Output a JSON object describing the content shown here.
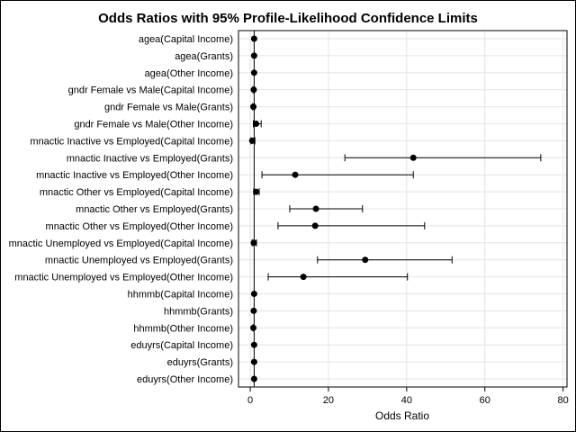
{
  "chart_data": {
    "type": "scatter",
    "subtype": "forest-plot",
    "title": "Odds Ratios with 95% Profile-Likelihood Confidence Limits",
    "xlabel": "Odds Ratio",
    "ylabel": "",
    "xlim": [
      -3,
      81
    ],
    "xticks": [
      0,
      20,
      40,
      60,
      80
    ],
    "grid": true,
    "reference_line": 1,
    "categories": [
      "agea(Capital Income)",
      "agea(Grants)",
      "agea(Other Income)",
      "gndr Female vs Male(Capital Income)",
      "gndr Female vs Male(Grants)",
      "gndr Female vs Male(Other Income)",
      "mnactic Inactive vs Employed(Capital Income)",
      "mnactic Inactive vs Employed(Grants)",
      "mnactic Inactive vs Employed(Other Income)",
      "mnactic Other vs Employed(Capital Income)",
      "mnactic Other vs Employed(Grants)",
      "mnactic Other vs Employed(Other Income)",
      "mnactic Unemployed vs Employed(Capital Income)",
      "mnactic Unemployed vs Employed(Grants)",
      "mnactic Unemployed vs Employed(Other Income)",
      "hhmmb(Capital Income)",
      "hhmmb(Grants)",
      "hhmmb(Other Income)",
      "eduyrs(Capital Income)",
      "eduyrs(Grants)",
      "eduyrs(Other Income)"
    ],
    "estimates": [
      1.0,
      1.0,
      1.0,
      0.9,
      0.8,
      1.5,
      0.5,
      41.7,
      11.5,
      1.5,
      16.8,
      16.6,
      0.9,
      29.4,
      13.6,
      1.0,
      0.9,
      0.8,
      1.0,
      1.0,
      1.0
    ],
    "lower": [
      1.0,
      1.0,
      1.0,
      0.7,
      0.6,
      0.8,
      0.2,
      24.2,
      3.0,
      0.9,
      10.1,
      7.1,
      0.5,
      17.2,
      4.6,
      1.0,
      0.9,
      0.7,
      1.0,
      1.0,
      1.0
    ],
    "upper": [
      1.0,
      1.0,
      1.0,
      1.1,
      1.1,
      2.8,
      1.2,
      74.3,
      41.7,
      2.3,
      28.7,
      44.6,
      1.6,
      51.6,
      40.2,
      1.0,
      1.0,
      0.9,
      1.0,
      1.0,
      1.0
    ],
    "color": "#000000"
  }
}
